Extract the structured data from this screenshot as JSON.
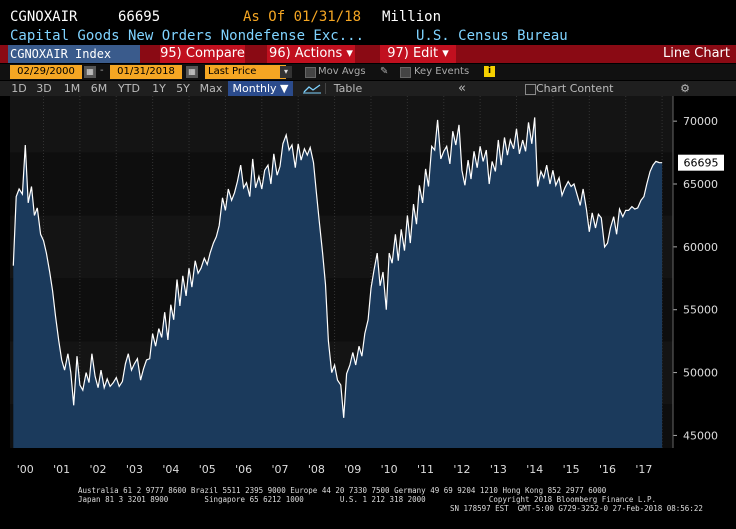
{
  "header": {
    "ticker": "CGNOXAIR",
    "last_value": "66695",
    "as_of": "As Of 01/31/18",
    "unit": "Million",
    "description": "Capital Goods New Orders Nondefense Exc...",
    "source": "U.S. Census Bureau"
  },
  "toolbar": {
    "index_label": "CGNOXAIR Index",
    "compare_label": "95) Compare",
    "actions_label": "96) Actions ▾",
    "edit_label": "97) Edit ▾",
    "line_chart_label": "Line Chart"
  },
  "controls": {
    "start_date": "02/29/2000",
    "end_date": "01/31/2018",
    "price_field": "Last Price",
    "mov_avgs_label": "Mov Avgs",
    "key_events_label": "Key Events",
    "info_icon": "i"
  },
  "periods": {
    "items": [
      "1D",
      "3D",
      "1M",
      "6M",
      "YTD",
      "1Y",
      "5Y",
      "Max"
    ],
    "selected": "Monthly ▼",
    "table_label": "Table",
    "chart_content_label": "Chart Content",
    "collapse_icon": "«",
    "gear_icon": "⚙"
  },
  "chart_data": {
    "type": "line",
    "title": "",
    "xlabel": "",
    "ylabel": "",
    "x_ticks": [
      "'00",
      "'01",
      "'02",
      "'03",
      "'04",
      "'05",
      "'06",
      "'07",
      "'08",
      "'09",
      "'10",
      "'11",
      "'12",
      "'13",
      "'14",
      "'15",
      "'16",
      "'17"
    ],
    "y_ticks": [
      "70000",
      "65000",
      "60000",
      "55000",
      "50000",
      "45000"
    ],
    "xlim": [
      2000.08,
      2018.3
    ],
    "ylim": [
      44000,
      72000
    ],
    "last_label": "66695",
    "series": [
      {
        "name": "",
        "color": "#ffffff",
        "points": [
          [
            2000.17,
            58500
          ],
          [
            2000.25,
            64000
          ],
          [
            2000.33,
            64600
          ],
          [
            2000.42,
            64200
          ],
          [
            2000.5,
            68100
          ],
          [
            2000.58,
            63500
          ],
          [
            2000.67,
            64800
          ],
          [
            2000.75,
            62500
          ],
          [
            2000.83,
            63100
          ],
          [
            2000.92,
            61000
          ],
          [
            2001.0,
            60500
          ],
          [
            2001.08,
            59500
          ],
          [
            2001.17,
            58000
          ],
          [
            2001.25,
            56500
          ],
          [
            2001.33,
            54500
          ],
          [
            2001.42,
            52500
          ],
          [
            2001.5,
            51000
          ],
          [
            2001.58,
            50200
          ],
          [
            2001.67,
            51500
          ],
          [
            2001.75,
            50000
          ],
          [
            2001.83,
            47400
          ],
          [
            2001.92,
            51300
          ],
          [
            2002.0,
            49000
          ],
          [
            2002.08,
            48600
          ],
          [
            2002.17,
            50000
          ],
          [
            2002.25,
            49200
          ],
          [
            2002.33,
            51500
          ],
          [
            2002.42,
            49700
          ],
          [
            2002.5,
            48800
          ],
          [
            2002.58,
            50200
          ],
          [
            2002.67,
            48800
          ],
          [
            2002.75,
            49500
          ],
          [
            2002.83,
            48900
          ],
          [
            2002.92,
            49200
          ],
          [
            2003.0,
            49600
          ],
          [
            2003.08,
            48900
          ],
          [
            2003.17,
            49300
          ],
          [
            2003.25,
            50700
          ],
          [
            2003.33,
            51500
          ],
          [
            2003.42,
            50200
          ],
          [
            2003.5,
            50700
          ],
          [
            2003.58,
            51100
          ],
          [
            2003.67,
            49400
          ],
          [
            2003.75,
            50300
          ],
          [
            2003.83,
            51000
          ],
          [
            2003.92,
            51100
          ],
          [
            2004.0,
            53100
          ],
          [
            2004.08,
            52100
          ],
          [
            2004.17,
            53500
          ],
          [
            2004.25,
            52800
          ],
          [
            2004.33,
            54800
          ],
          [
            2004.42,
            52600
          ],
          [
            2004.5,
            55400
          ],
          [
            2004.58,
            54200
          ],
          [
            2004.67,
            57400
          ],
          [
            2004.75,
            55300
          ],
          [
            2004.83,
            57700
          ],
          [
            2004.92,
            56100
          ],
          [
            2005.0,
            58300
          ],
          [
            2005.08,
            56800
          ],
          [
            2005.17,
            58900
          ],
          [
            2005.25,
            57900
          ],
          [
            2005.33,
            58300
          ],
          [
            2005.42,
            59100
          ],
          [
            2005.5,
            58600
          ],
          [
            2005.58,
            59500
          ],
          [
            2005.67,
            60300
          ],
          [
            2005.75,
            60800
          ],
          [
            2005.83,
            61700
          ],
          [
            2005.92,
            63900
          ],
          [
            2006.0,
            62900
          ],
          [
            2006.08,
            64600
          ],
          [
            2006.17,
            63700
          ],
          [
            2006.25,
            64300
          ],
          [
            2006.33,
            65200
          ],
          [
            2006.42,
            66500
          ],
          [
            2006.5,
            64700
          ],
          [
            2006.58,
            65100
          ],
          [
            2006.67,
            64000
          ],
          [
            2006.75,
            67000
          ],
          [
            2006.83,
            64700
          ],
          [
            2006.92,
            65600
          ],
          [
            2007.0,
            64600
          ],
          [
            2007.08,
            66100
          ],
          [
            2007.17,
            66500
          ],
          [
            2007.25,
            65000
          ],
          [
            2007.33,
            67400
          ],
          [
            2007.42,
            65700
          ],
          [
            2007.5,
            66400
          ],
          [
            2007.58,
            68200
          ],
          [
            2007.67,
            68900
          ],
          [
            2007.75,
            67700
          ],
          [
            2007.83,
            68100
          ],
          [
            2007.92,
            66300
          ],
          [
            2008.0,
            68200
          ],
          [
            2008.08,
            66900
          ],
          [
            2008.17,
            67800
          ],
          [
            2008.25,
            67300
          ],
          [
            2008.33,
            67900
          ],
          [
            2008.42,
            66700
          ],
          [
            2008.5,
            64300
          ],
          [
            2008.58,
            62000
          ],
          [
            2008.67,
            59500
          ],
          [
            2008.75,
            57000
          ],
          [
            2008.83,
            52500
          ],
          [
            2008.92,
            50000
          ],
          [
            2009.0,
            50600
          ],
          [
            2009.08,
            49400
          ],
          [
            2009.17,
            49000
          ],
          [
            2009.25,
            46400
          ],
          [
            2009.33,
            49900
          ],
          [
            2009.42,
            50600
          ],
          [
            2009.5,
            51600
          ],
          [
            2009.58,
            50600
          ],
          [
            2009.67,
            52100
          ],
          [
            2009.75,
            51300
          ],
          [
            2009.83,
            53100
          ],
          [
            2009.92,
            54200
          ],
          [
            2010.0,
            56700
          ],
          [
            2010.08,
            58100
          ],
          [
            2010.17,
            59500
          ],
          [
            2010.25,
            56900
          ],
          [
            2010.33,
            58000
          ],
          [
            2010.42,
            55000
          ],
          [
            2010.5,
            59500
          ],
          [
            2010.58,
            58700
          ],
          [
            2010.67,
            61000
          ],
          [
            2010.75,
            58900
          ],
          [
            2010.83,
            61400
          ],
          [
            2010.92,
            59700
          ],
          [
            2011.0,
            62500
          ],
          [
            2011.08,
            60300
          ],
          [
            2011.17,
            63400
          ],
          [
            2011.25,
            61800
          ],
          [
            2011.33,
            64900
          ],
          [
            2011.42,
            63500
          ],
          [
            2011.5,
            66200
          ],
          [
            2011.58,
            64800
          ],
          [
            2011.67,
            68000
          ],
          [
            2011.75,
            67700
          ],
          [
            2011.83,
            70100
          ],
          [
            2011.92,
            67000
          ],
          [
            2012.0,
            67600
          ],
          [
            2012.08,
            68000
          ],
          [
            2012.17,
            66600
          ],
          [
            2012.25,
            69200
          ],
          [
            2012.33,
            68100
          ],
          [
            2012.42,
            69700
          ],
          [
            2012.5,
            66100
          ],
          [
            2012.58,
            64900
          ],
          [
            2012.67,
            66900
          ],
          [
            2012.75,
            65400
          ],
          [
            2012.83,
            67600
          ],
          [
            2012.92,
            66300
          ],
          [
            2013.0,
            68000
          ],
          [
            2013.08,
            66800
          ],
          [
            2013.17,
            67700
          ],
          [
            2013.25,
            65000
          ],
          [
            2013.33,
            66800
          ],
          [
            2013.42,
            66000
          ],
          [
            2013.5,
            68500
          ],
          [
            2013.58,
            66500
          ],
          [
            2013.67,
            68700
          ],
          [
            2013.75,
            67300
          ],
          [
            2013.83,
            68500
          ],
          [
            2013.92,
            67800
          ],
          [
            2014.0,
            69400
          ],
          [
            2014.08,
            67400
          ],
          [
            2014.17,
            68500
          ],
          [
            2014.25,
            67600
          ],
          [
            2014.33,
            69900
          ],
          [
            2014.42,
            68200
          ],
          [
            2014.5,
            70300
          ],
          [
            2014.58,
            64800
          ],
          [
            2014.67,
            66000
          ],
          [
            2014.75,
            65500
          ],
          [
            2014.83,
            66500
          ],
          [
            2014.92,
            65000
          ],
          [
            2015.0,
            66100
          ],
          [
            2015.08,
            64900
          ],
          [
            2015.17,
            65500
          ],
          [
            2015.25,
            64100
          ],
          [
            2015.33,
            64700
          ],
          [
            2015.42,
            65200
          ],
          [
            2015.5,
            64800
          ],
          [
            2015.58,
            65000
          ],
          [
            2015.67,
            64100
          ],
          [
            2015.75,
            63300
          ],
          [
            2015.83,
            64600
          ],
          [
            2015.92,
            63000
          ],
          [
            2016.0,
            61200
          ],
          [
            2016.08,
            62700
          ],
          [
            2016.17,
            61500
          ],
          [
            2016.25,
            62600
          ],
          [
            2016.33,
            62300
          ],
          [
            2016.42,
            60000
          ],
          [
            2016.5,
            60300
          ],
          [
            2016.58,
            61500
          ],
          [
            2016.67,
            62400
          ],
          [
            2016.75,
            61000
          ],
          [
            2016.83,
            63000
          ],
          [
            2016.92,
            62400
          ],
          [
            2017.0,
            62900
          ],
          [
            2017.08,
            62900
          ],
          [
            2017.17,
            63200
          ],
          [
            2017.25,
            63000
          ],
          [
            2017.33,
            63100
          ],
          [
            2017.42,
            63700
          ],
          [
            2017.5,
            64000
          ],
          [
            2017.58,
            65000
          ],
          [
            2017.67,
            66000
          ],
          [
            2017.75,
            66500
          ],
          [
            2017.83,
            66800
          ],
          [
            2017.92,
            66700
          ],
          [
            2018.0,
            66695
          ]
        ]
      }
    ]
  },
  "footer": {
    "line1": "Australia 61 2 9777 8600 Brazil 5511 2395 9000 Europe 44 20 7330 7500 Germany 49 69 9204 1210 Hong Kong 852 2977 6000",
    "line2": "Japan 81 3 3201 8900        Singapore 65 6212 1000        U.S. 1 212 318 2000              Copyright 2018 Bloomberg Finance L.P.",
    "line3": "SN 178597 EST  GMT-5:00 G729-3252-0 27-Feb-2018 08:56:22"
  }
}
